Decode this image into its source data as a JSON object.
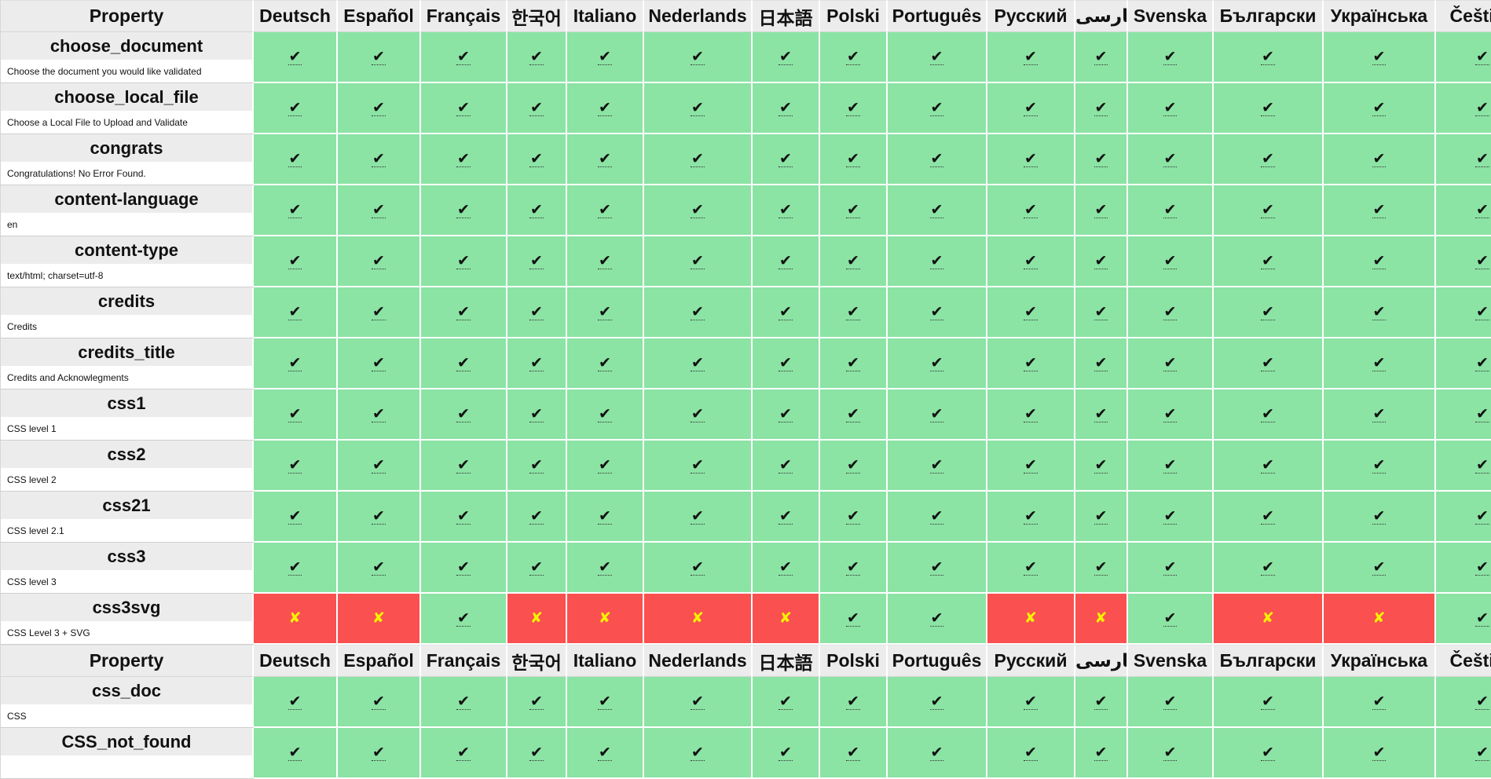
{
  "header": {
    "property_label": "Property",
    "languages": [
      "Deutsch",
      "Español",
      "Français",
      "한국어",
      "Italiano",
      "Nederlands",
      "日本語",
      "Polski",
      "Português",
      "Русский",
      "فارسی",
      "Svenska",
      "Български",
      "Українська",
      "Čeština"
    ]
  },
  "symbols": {
    "translated": "✔",
    "missing": "✘"
  },
  "colors": {
    "translated_bg": "#8be3a4",
    "missing_bg": "#fa5050",
    "missing_mark": "#f6f200",
    "header_bg": "#ececec"
  },
  "rows": [
    {
      "name": "choose_document",
      "description": "Choose the document you would like validated",
      "status": [
        1,
        1,
        1,
        1,
        1,
        1,
        1,
        1,
        1,
        1,
        1,
        1,
        1,
        1,
        1
      ]
    },
    {
      "name": "choose_local_file",
      "description": "Choose a Local File to Upload and Validate",
      "status": [
        1,
        1,
        1,
        1,
        1,
        1,
        1,
        1,
        1,
        1,
        1,
        1,
        1,
        1,
        1
      ]
    },
    {
      "name": "congrats",
      "description": "Congratulations! No Error Found.",
      "status": [
        1,
        1,
        1,
        1,
        1,
        1,
        1,
        1,
        1,
        1,
        1,
        1,
        1,
        1,
        1
      ]
    },
    {
      "name": "content-language",
      "description": "en",
      "status": [
        1,
        1,
        1,
        1,
        1,
        1,
        1,
        1,
        1,
        1,
        1,
        1,
        1,
        1,
        1
      ]
    },
    {
      "name": "content-type",
      "description": "text/html; charset=utf-8",
      "status": [
        1,
        1,
        1,
        1,
        1,
        1,
        1,
        1,
        1,
        1,
        1,
        1,
        1,
        1,
        1
      ]
    },
    {
      "name": "credits",
      "description": "Credits",
      "status": [
        1,
        1,
        1,
        1,
        1,
        1,
        1,
        1,
        1,
        1,
        1,
        1,
        1,
        1,
        1
      ]
    },
    {
      "name": "credits_title",
      "description": "Credits and Acknowlegments",
      "status": [
        1,
        1,
        1,
        1,
        1,
        1,
        1,
        1,
        1,
        1,
        1,
        1,
        1,
        1,
        1
      ]
    },
    {
      "name": "css1",
      "description": "CSS level 1",
      "status": [
        1,
        1,
        1,
        1,
        1,
        1,
        1,
        1,
        1,
        1,
        1,
        1,
        1,
        1,
        1
      ]
    },
    {
      "name": "css2",
      "description": "CSS level 2",
      "status": [
        1,
        1,
        1,
        1,
        1,
        1,
        1,
        1,
        1,
        1,
        1,
        1,
        1,
        1,
        1
      ]
    },
    {
      "name": "css21",
      "description": "CSS level 2.1",
      "status": [
        1,
        1,
        1,
        1,
        1,
        1,
        1,
        1,
        1,
        1,
        1,
        1,
        1,
        1,
        1
      ]
    },
    {
      "name": "css3",
      "description": "CSS level 3",
      "status": [
        1,
        1,
        1,
        1,
        1,
        1,
        1,
        1,
        1,
        1,
        1,
        1,
        1,
        1,
        1
      ]
    },
    {
      "name": "css3svg",
      "description": "CSS Level 3 + SVG",
      "status": [
        0,
        0,
        1,
        0,
        0,
        0,
        0,
        1,
        1,
        0,
        0,
        1,
        0,
        0,
        1
      ]
    },
    "HEADER",
    {
      "name": "css_doc",
      "description": "CSS",
      "status": [
        1,
        1,
        1,
        1,
        1,
        1,
        1,
        1,
        1,
        1,
        1,
        1,
        1,
        1,
        1
      ]
    },
    {
      "name": "CSS_not_found",
      "description": "",
      "status": [
        1,
        1,
        1,
        1,
        1,
        1,
        1,
        1,
        1,
        1,
        1,
        1,
        1,
        1,
        1
      ]
    }
  ]
}
